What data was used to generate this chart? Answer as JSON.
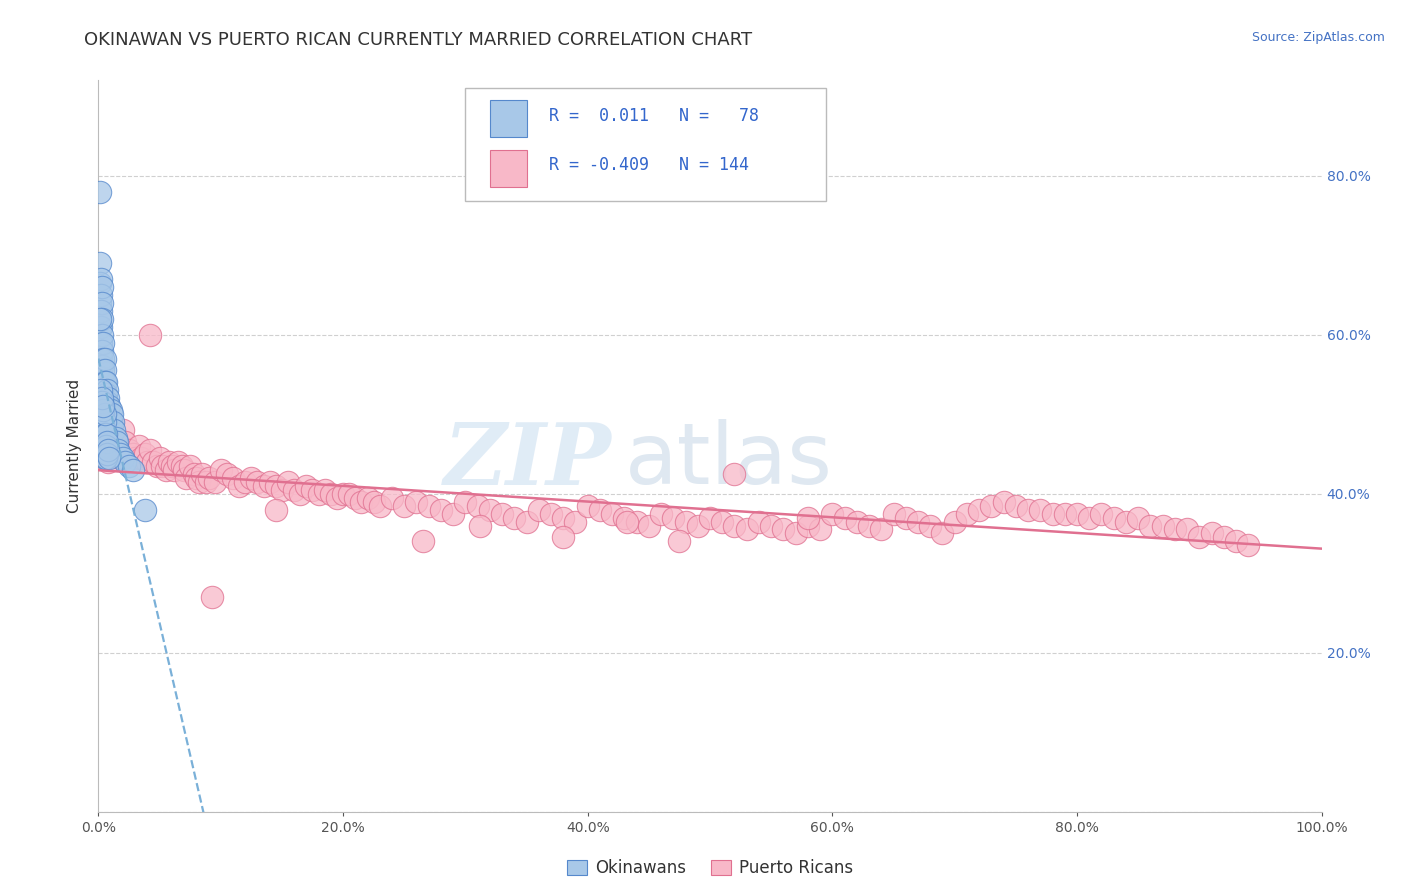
{
  "title": "OKINAWAN VS PUERTO RICAN CURRENTLY MARRIED CORRELATION CHART",
  "source": "Source: ZipAtlas.com",
  "ylabel": "Currently Married",
  "xlim": [
    0.0,
    1.0
  ],
  "ylim": [
    0.0,
    0.92
  ],
  "xticks": [
    0.0,
    0.2,
    0.4,
    0.6,
    0.8,
    1.0
  ],
  "yticks": [
    0.0,
    0.2,
    0.4,
    0.6,
    0.8
  ],
  "okinawan_color": "#a8c8e8",
  "okinawan_edge": "#5588cc",
  "puerto_rican_color": "#f8b8c8",
  "puerto_rican_edge": "#e07090",
  "trend_blue_color": "#7ab0d8",
  "trend_pink_color": "#e07090",
  "R_okinawan": 0.011,
  "N_okinawan": 78,
  "R_puerto_rican": -0.409,
  "N_puerto_rican": 144,
  "okinawan_x": [
    0.001,
    0.001,
    0.001,
    0.001,
    0.001,
    0.002,
    0.002,
    0.002,
    0.002,
    0.002,
    0.002,
    0.002,
    0.002,
    0.003,
    0.003,
    0.003,
    0.003,
    0.003,
    0.003,
    0.003,
    0.003,
    0.003,
    0.004,
    0.004,
    0.004,
    0.004,
    0.004,
    0.005,
    0.005,
    0.005,
    0.006,
    0.006,
    0.007,
    0.007,
    0.008,
    0.008,
    0.009,
    0.01,
    0.01,
    0.011,
    0.012,
    0.013,
    0.014,
    0.015,
    0.016,
    0.018,
    0.02,
    0.022,
    0.025,
    0.028,
    0.002,
    0.002,
    0.003,
    0.003,
    0.003,
    0.004,
    0.004,
    0.004,
    0.004,
    0.005,
    0.005,
    0.005,
    0.005,
    0.006,
    0.006,
    0.006,
    0.007,
    0.007,
    0.008,
    0.009,
    0.002,
    0.003,
    0.004,
    0.005,
    0.003,
    0.004,
    0.038,
    0.001
  ],
  "okinawan_y": [
    0.78,
    0.69,
    0.665,
    0.64,
    0.61,
    0.67,
    0.65,
    0.63,
    0.61,
    0.59,
    0.57,
    0.555,
    0.54,
    0.66,
    0.64,
    0.62,
    0.6,
    0.58,
    0.56,
    0.545,
    0.53,
    0.515,
    0.59,
    0.57,
    0.555,
    0.54,
    0.52,
    0.57,
    0.555,
    0.54,
    0.54,
    0.525,
    0.53,
    0.515,
    0.52,
    0.505,
    0.51,
    0.505,
    0.49,
    0.5,
    0.49,
    0.48,
    0.47,
    0.465,
    0.455,
    0.45,
    0.445,
    0.44,
    0.435,
    0.43,
    0.49,
    0.475,
    0.51,
    0.495,
    0.48,
    0.5,
    0.485,
    0.47,
    0.455,
    0.49,
    0.475,
    0.46,
    0.445,
    0.475,
    0.46,
    0.445,
    0.465,
    0.45,
    0.455,
    0.445,
    0.53,
    0.515,
    0.505,
    0.5,
    0.52,
    0.51,
    0.38,
    0.62
  ],
  "puerto_rican_x": [
    0.005,
    0.008,
    0.01,
    0.012,
    0.015,
    0.018,
    0.02,
    0.022,
    0.025,
    0.028,
    0.03,
    0.033,
    0.035,
    0.038,
    0.04,
    0.042,
    0.045,
    0.048,
    0.05,
    0.052,
    0.055,
    0.058,
    0.06,
    0.062,
    0.065,
    0.068,
    0.07,
    0.072,
    0.075,
    0.078,
    0.08,
    0.082,
    0.085,
    0.088,
    0.09,
    0.095,
    0.1,
    0.105,
    0.11,
    0.115,
    0.12,
    0.125,
    0.13,
    0.135,
    0.14,
    0.145,
    0.15,
    0.155,
    0.16,
    0.165,
    0.17,
    0.175,
    0.18,
    0.185,
    0.19,
    0.195,
    0.2,
    0.205,
    0.21,
    0.215,
    0.22,
    0.225,
    0.23,
    0.24,
    0.25,
    0.26,
    0.27,
    0.28,
    0.29,
    0.3,
    0.31,
    0.32,
    0.33,
    0.34,
    0.35,
    0.36,
    0.37,
    0.38,
    0.39,
    0.4,
    0.41,
    0.42,
    0.43,
    0.44,
    0.45,
    0.46,
    0.47,
    0.48,
    0.49,
    0.5,
    0.51,
    0.52,
    0.53,
    0.54,
    0.55,
    0.56,
    0.57,
    0.58,
    0.59,
    0.6,
    0.61,
    0.62,
    0.63,
    0.64,
    0.65,
    0.66,
    0.67,
    0.68,
    0.69,
    0.7,
    0.71,
    0.72,
    0.73,
    0.74,
    0.75,
    0.76,
    0.77,
    0.78,
    0.79,
    0.8,
    0.81,
    0.82,
    0.83,
    0.84,
    0.85,
    0.86,
    0.87,
    0.88,
    0.89,
    0.9,
    0.91,
    0.92,
    0.93,
    0.94,
    0.312,
    0.432,
    0.475,
    0.38,
    0.265,
    0.145,
    0.093,
    0.042,
    0.58,
    0.52
  ],
  "puerto_rican_y": [
    0.45,
    0.44,
    0.48,
    0.455,
    0.46,
    0.445,
    0.48,
    0.465,
    0.455,
    0.45,
    0.445,
    0.46,
    0.445,
    0.45,
    0.44,
    0.455,
    0.44,
    0.435,
    0.445,
    0.435,
    0.43,
    0.44,
    0.435,
    0.43,
    0.44,
    0.435,
    0.43,
    0.42,
    0.435,
    0.425,
    0.42,
    0.415,
    0.425,
    0.415,
    0.42,
    0.415,
    0.43,
    0.425,
    0.42,
    0.41,
    0.415,
    0.42,
    0.415,
    0.41,
    0.415,
    0.41,
    0.405,
    0.415,
    0.405,
    0.4,
    0.41,
    0.405,
    0.4,
    0.405,
    0.4,
    0.395,
    0.4,
    0.4,
    0.395,
    0.39,
    0.395,
    0.39,
    0.385,
    0.395,
    0.385,
    0.39,
    0.385,
    0.38,
    0.375,
    0.39,
    0.385,
    0.38,
    0.375,
    0.37,
    0.365,
    0.38,
    0.375,
    0.37,
    0.365,
    0.385,
    0.38,
    0.375,
    0.37,
    0.365,
    0.36,
    0.375,
    0.37,
    0.365,
    0.36,
    0.37,
    0.365,
    0.36,
    0.355,
    0.365,
    0.36,
    0.355,
    0.35,
    0.36,
    0.355,
    0.375,
    0.37,
    0.365,
    0.36,
    0.355,
    0.375,
    0.37,
    0.365,
    0.36,
    0.35,
    0.365,
    0.375,
    0.38,
    0.385,
    0.39,
    0.385,
    0.38,
    0.38,
    0.375,
    0.375,
    0.375,
    0.37,
    0.375,
    0.37,
    0.365,
    0.37,
    0.36,
    0.36,
    0.355,
    0.355,
    0.345,
    0.35,
    0.345,
    0.34,
    0.335,
    0.36,
    0.365,
    0.34,
    0.345,
    0.34,
    0.38,
    0.27,
    0.6,
    0.37,
    0.425
  ],
  "watermark_zip": "ZIP",
  "watermark_atlas": "atlas",
  "background_color": "#ffffff",
  "grid_color": "#d0d0d0",
  "title_fontsize": 13,
  "label_fontsize": 11,
  "tick_fontsize": 10,
  "legend_fontsize": 12,
  "source_fontsize": 9
}
